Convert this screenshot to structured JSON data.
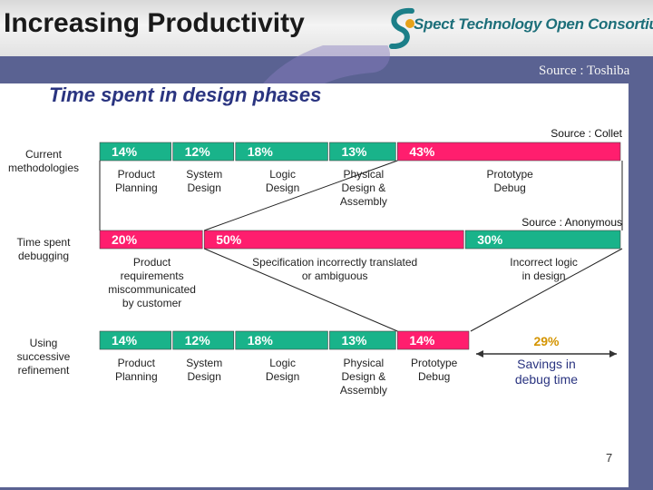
{
  "header": {
    "title": "Increasing Productivity",
    "logo_text": "Spect Technology Open Consortium"
  },
  "source_main": "Source : Toshiba",
  "page_number": "7",
  "colors": {
    "green": "#19b38a",
    "red": "#ff1e6e",
    "text": "#1a1a1a",
    "title_blue": "#2a3480"
  },
  "chart_data": {
    "type": "bar",
    "title": "Time spent in design phases",
    "rows": [
      {
        "label": [
          "Current",
          "methodologies"
        ],
        "source": "Source : Collet",
        "segments": [
          {
            "value": 14,
            "text": "14%",
            "color": "green",
            "label": [
              "Product",
              "Planning"
            ]
          },
          {
            "value": 12,
            "text": "12%",
            "color": "green",
            "label": [
              "System",
              "Design"
            ]
          },
          {
            "value": 18,
            "text": "18%",
            "color": "green",
            "label": [
              "Logic",
              "Design"
            ]
          },
          {
            "value": 13,
            "text": "13%",
            "color": "green",
            "label": [
              "Physical",
              "Design &",
              "Assembly"
            ]
          },
          {
            "value": 43,
            "text": "43%",
            "color": "red",
            "label": [
              "Prototype",
              "Debug"
            ]
          }
        ]
      },
      {
        "label": [
          "Time spent",
          "debugging"
        ],
        "source": "Source : Anonymous",
        "segments": [
          {
            "value": 20,
            "text": "20%",
            "color": "red",
            "label": [
              "Product",
              "requirements",
              "miscommunicated",
              "by customer"
            ]
          },
          {
            "value": 50,
            "text": "50%",
            "color": "red",
            "label": [
              "Specification incorrectly translated",
              "or ambiguous"
            ]
          },
          {
            "value": 30,
            "text": "30%",
            "color": "green",
            "label": [
              "Incorrect logic",
              "in design"
            ]
          }
        ]
      },
      {
        "label": [
          "Using",
          "successive",
          "refinement"
        ],
        "source": "",
        "segments": [
          {
            "value": 14,
            "text": "14%",
            "color": "green",
            "label": [
              "Product",
              "Planning"
            ]
          },
          {
            "value": 12,
            "text": "12%",
            "color": "green",
            "label": [
              "System",
              "Design"
            ]
          },
          {
            "value": 18,
            "text": "18%",
            "color": "green",
            "label": [
              "Logic",
              "Design"
            ]
          },
          {
            "value": 13,
            "text": "13%",
            "color": "green",
            "label": [
              "Physical",
              "Design &",
              "Assembly"
            ]
          },
          {
            "value": 14,
            "text": "14%",
            "color": "red",
            "label": [
              "Prototype",
              "Debug"
            ]
          }
        ],
        "savings": {
          "value": 29,
          "text": "29%",
          "label": [
            "Savings in",
            "debug time"
          ]
        }
      }
    ]
  }
}
